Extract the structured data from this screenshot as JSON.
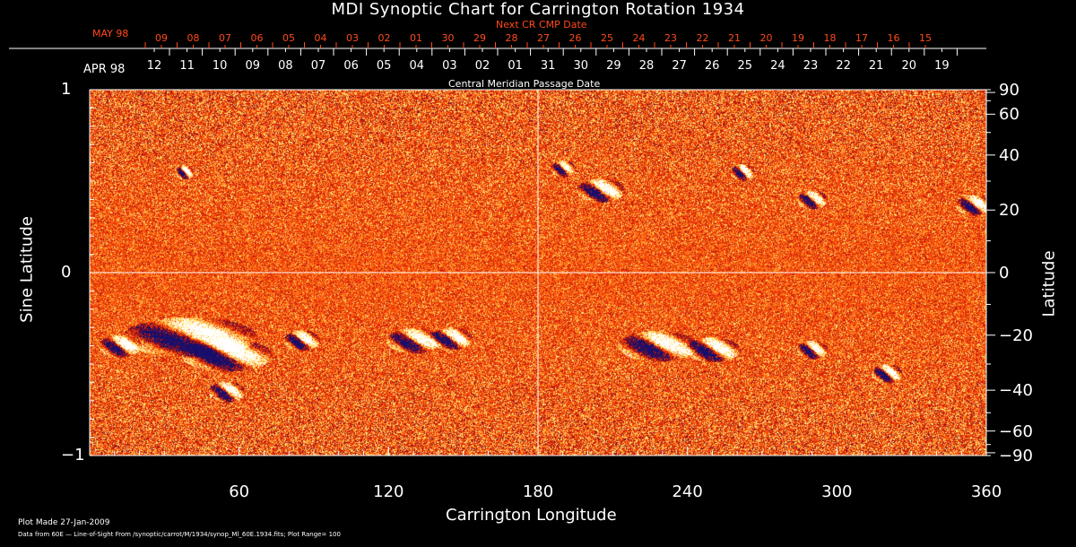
{
  "chart_data": {
    "type": "heatmap",
    "title": "MDI Synoptic Chart for Carrington Rotation 1934",
    "xlabel": "Carrington Longitude",
    "ylabel_left": "Sine Latitude",
    "ylabel_right": "Latitude",
    "xlim": [
      0,
      360
    ],
    "x_ticks": [
      60,
      120,
      180,
      240,
      300,
      360
    ],
    "y_left_ticks": [
      {
        "v": 1,
        "label": "1"
      },
      {
        "v": 0,
        "label": "0"
      },
      {
        "v": -1,
        "label": "−1"
      }
    ],
    "y_right_ticks": [
      90,
      60,
      40,
      20,
      0,
      -20,
      -40,
      -60,
      -90
    ],
    "y_right_tick_labels": [
      "90",
      "60",
      "40",
      "20",
      "0",
      "−20",
      "−40",
      "−60",
      "−90"
    ],
    "top_axis_label": "Central Meridian Passage Date",
    "top_axis_month": "APR 98",
    "top_axis_dates": [
      "12",
      "11",
      "10",
      "09",
      "08",
      "07",
      "06",
      "05",
      "04",
      "03",
      "02",
      "01",
      "31",
      "30",
      "29",
      "28",
      "27",
      "26",
      "25",
      "24",
      "23",
      "22",
      "21",
      "20",
      "19"
    ],
    "next_axis_label": "Next CR CMP Date",
    "next_axis_month": "MAY 98",
    "next_axis_dates": [
      "09",
      "08",
      "07",
      "06",
      "05",
      "04",
      "03",
      "02",
      "01",
      "30",
      "29",
      "28",
      "27",
      "26",
      "25",
      "24",
      "23",
      "22",
      "21",
      "20",
      "19",
      "18",
      "17",
      "16",
      "15"
    ],
    "plot_range": 100,
    "colors": {
      "positive": "#ffffff",
      "negative": "#10106a",
      "background": "#ff4a10",
      "next_axis": "#ff4a1a"
    }
  },
  "footer": {
    "plot_made": "Plot Made 27-Jan-2009",
    "data_source": "Data from 60E — Line-of-Sight From /synoptic/carrot/M/1934/synop_Ml_60E.1934.fits; Plot Range=  100"
  }
}
